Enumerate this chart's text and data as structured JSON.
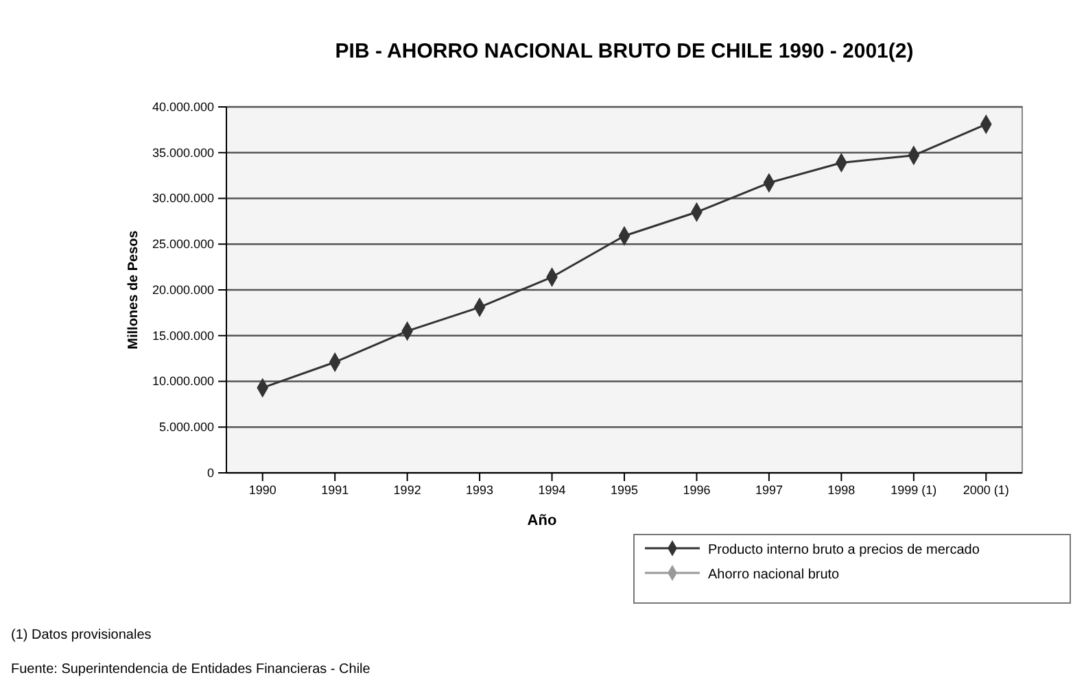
{
  "chart_data": {
    "type": "line",
    "title": "PIB - AHORRO NACIONAL BRUTO DE CHILE 1990 - 2001(2)",
    "xlabel": "Año",
    "ylabel": "Millones de Pesos",
    "categories": [
      "1990",
      "1991",
      "1992",
      "1993",
      "1994",
      "1995",
      "1996",
      "1997",
      "1998",
      "1999 (1)",
      "2000 (1)"
    ],
    "series": [
      {
        "name": "Producto interno bruto a precios de mercado",
        "color": "#333333",
        "values": [
          9300000,
          12100000,
          15500000,
          18100000,
          21400000,
          25900000,
          28500000,
          31700000,
          33900000,
          34700000,
          38100000
        ]
      },
      {
        "name": "Ahorro nacional bruto",
        "color": "#999999",
        "values": [
          null,
          null,
          null,
          null,
          null,
          null,
          null,
          null,
          null,
          null,
          null
        ]
      }
    ],
    "ylim": [
      0,
      40000000
    ],
    "yticks": [
      {
        "value": 0,
        "label": "0"
      },
      {
        "value": 5000000,
        "label": "5.000.000"
      },
      {
        "value": 10000000,
        "label": "10.000.000"
      },
      {
        "value": 15000000,
        "label": "15.000.000"
      },
      {
        "value": 20000000,
        "label": "20.000.000"
      },
      {
        "value": 25000000,
        "label": "25.000.000"
      },
      {
        "value": 30000000,
        "label": "30.000.000"
      },
      {
        "value": 35000000,
        "label": "35.000.000"
      },
      {
        "value": 40000000,
        "label": "40.000.000"
      }
    ],
    "grid": "y",
    "legend": "bottom right",
    "marker": "diamond",
    "line_style": "solid",
    "annotations": [
      "(1) Datos provisionales",
      "Fuente: Superintendencia de Entidades Financieras - Chile"
    ]
  }
}
